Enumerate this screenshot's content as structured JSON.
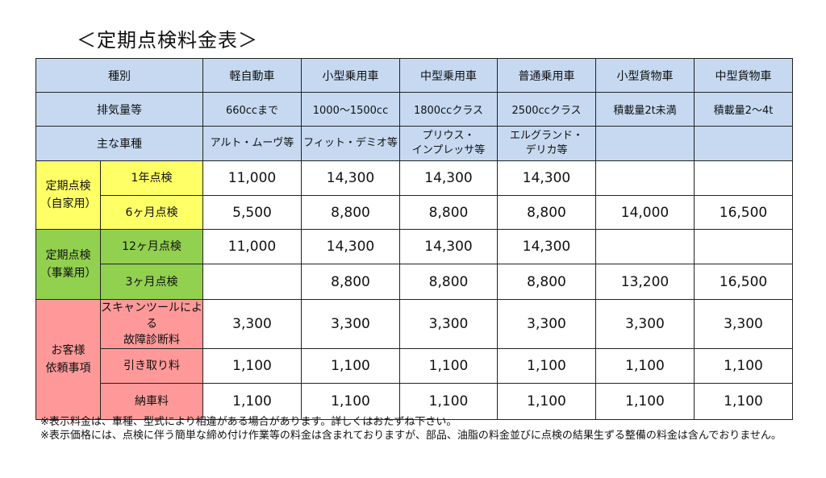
{
  "title": "＜定期点検料金表＞",
  "header": {
    "category_label": "種別",
    "columns": [
      "軽自動車",
      "小型乗用車",
      "中型乗用車",
      "普通乗用車",
      "小型貨物車",
      "中型貨物車"
    ]
  },
  "displacement": {
    "label": "排気量等",
    "values": [
      "660ccまで",
      "1000～1500cc",
      "1800ccクラス",
      "2500ccクラス",
      "積載量2t未満",
      "積載量2～4t"
    ]
  },
  "models": {
    "label": "主な車種",
    "values": [
      [
        "アルト・ムーヴ等"
      ],
      [
        "フィット・デミオ等"
      ],
      [
        "プリウス・",
        "インプレッサ等"
      ],
      [
        "エルグランド・",
        "デリカ等"
      ],
      [],
      []
    ]
  },
  "groups": [
    {
      "name": [
        "定期点検",
        "（自家用）"
      ],
      "color": "#ffff66",
      "rows": [
        {
          "label": "1年点検",
          "prices": [
            "11,000",
            "14,300",
            "14,300",
            "14,300",
            "",
            ""
          ]
        },
        {
          "label": "6ヶ月点検",
          "prices": [
            "5,500",
            "8,800",
            "8,800",
            "8,800",
            "14,000",
            "16,500"
          ]
        }
      ]
    },
    {
      "name": [
        "定期点検",
        "（事業用）"
      ],
      "color": "#92d050",
      "rows": [
        {
          "label": "12ヶ月点検",
          "prices": [
            "11,000",
            "14,300",
            "14,300",
            "14,300",
            "",
            ""
          ]
        },
        {
          "label": "3ヶ月点検",
          "prices": [
            "",
            "8,800",
            "8,800",
            "8,800",
            "13,200",
            "16,500"
          ]
        }
      ]
    },
    {
      "name": [
        "お客様",
        "依頼事項"
      ],
      "color": "#ff9999",
      "rows": [
        {
          "label": [
            "スキャンツールによる",
            "故障診断料"
          ],
          "prices": [
            "3,300",
            "3,300",
            "3,300",
            "3,300",
            "3,300",
            "3,300"
          ]
        },
        {
          "label": "引き取り料",
          "prices": [
            "1,100",
            "1,100",
            "1,100",
            "1,100",
            "1,100",
            "1,100"
          ]
        },
        {
          "label": "納車料",
          "prices": [
            "1,100",
            "1,100",
            "1,100",
            "1,100",
            "1,100",
            "1,100"
          ]
        }
      ]
    }
  ],
  "notes": [
    "※表示料金は、車種、型式により相違がある場合があります。詳しくはおたずね下さい。",
    "※表示価格には、点検に伴う簡単な締め付け作業等の料金は含まれておりますが、部品、油脂の料金並びに点検の結果生ずる整備の料金は含んでおりません。"
  ]
}
